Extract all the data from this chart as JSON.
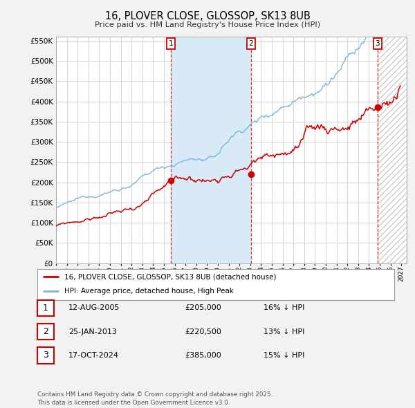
{
  "title": "16, PLOVER CLOSE, GLOSSOP, SK13 8UB",
  "subtitle": "Price paid vs. HM Land Registry's House Price Index (HPI)",
  "xlim_start": 1995.0,
  "xlim_end": 2027.5,
  "ylim": [
    0,
    560000
  ],
  "yticks": [
    0,
    50000,
    100000,
    150000,
    200000,
    250000,
    300000,
    350000,
    400000,
    450000,
    500000,
    550000
  ],
  "background_color": "#f2f2f2",
  "plot_bg_color": "#ffffff",
  "grid_color": "#cccccc",
  "hpi_color": "#7ab4d8",
  "price_color": "#cc0000",
  "sale1_x": 2005.62,
  "sale1_y": 205000,
  "sale2_x": 2013.07,
  "sale2_y": 220500,
  "sale3_x": 2024.8,
  "sale3_y": 385000,
  "shade_between_1_2_color": "#d8eaf5",
  "shade_after_3_color": "#d8d8d8",
  "legend_price_label": "16, PLOVER CLOSE, GLOSSOP, SK13 8UB (detached house)",
  "legend_hpi_label": "HPI: Average price, detached house, High Peak",
  "table_rows": [
    {
      "num": "1",
      "date": "12-AUG-2005",
      "price": "£205,000",
      "hpi": "16% ↓ HPI"
    },
    {
      "num": "2",
      "date": "25-JAN-2013",
      "price": "£220,500",
      "hpi": "13% ↓ HPI"
    },
    {
      "num": "3",
      "date": "17-OCT-2024",
      "price": "£385,000",
      "hpi": "15% ↓ HPI"
    }
  ],
  "footer": "Contains HM Land Registry data © Crown copyright and database right 2025.\nThis data is licensed under the Open Government Licence v3.0."
}
